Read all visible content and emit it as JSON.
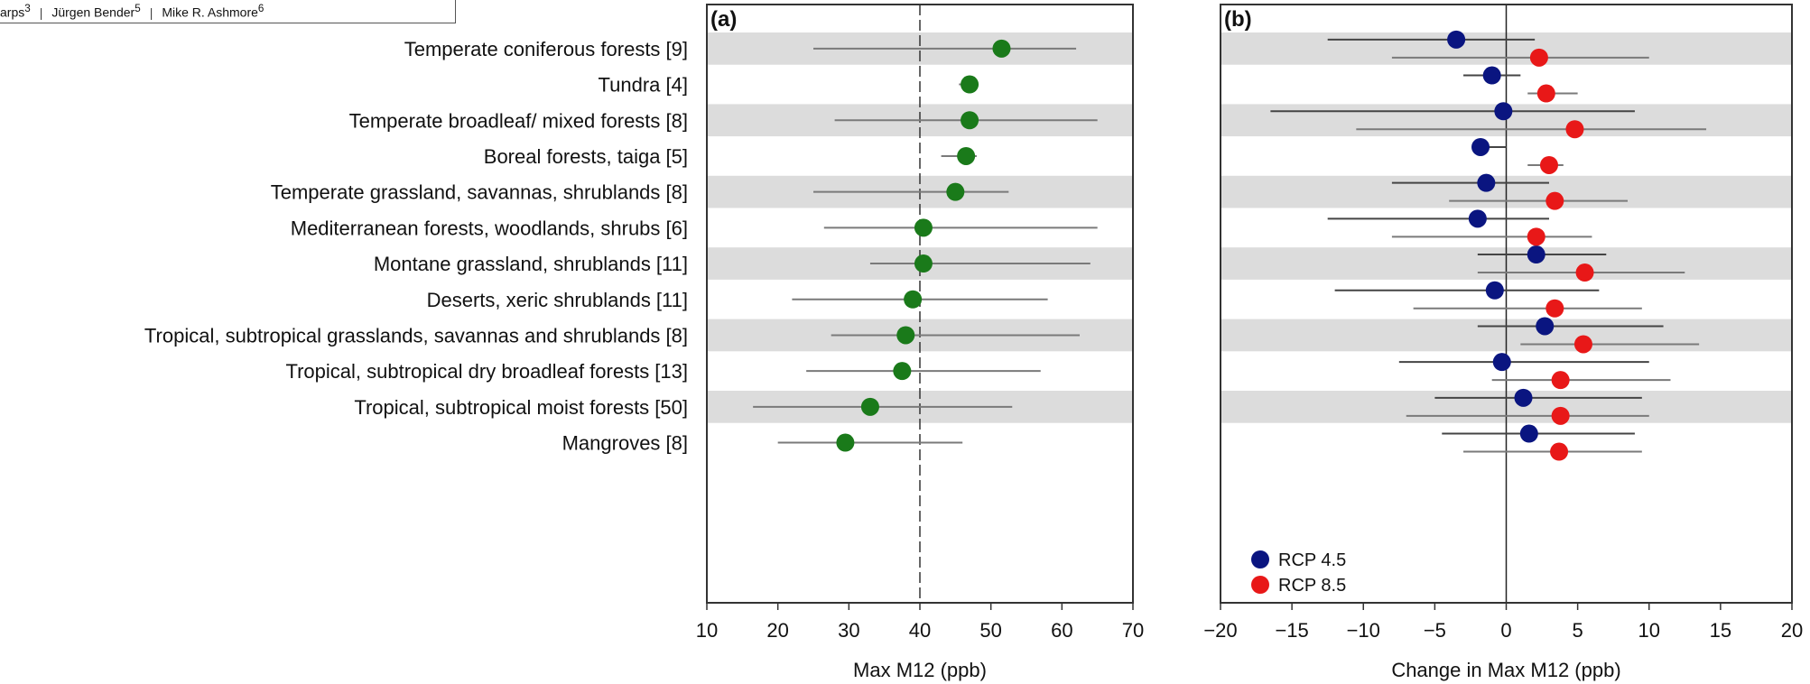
{
  "header": {
    "authors": [
      {
        "name": "arps",
        "sup": "3"
      },
      {
        "name": "Jürgen Bender",
        "sup": "5"
      },
      {
        "name": "Mike R. Ashmore",
        "sup": "6"
      }
    ],
    "separator": "|"
  },
  "categories": [
    "Temperate coniferous forests [9]",
    "Tundra [4]",
    "Temperate broadleaf/ mixed forests [8]",
    "Boreal forests, taiga [5]",
    "Temperate grassland, savannas, shrublands [8]",
    "Mediterranean forests, woodlands, shrubs [6]",
    "Montane grassland, shrublands [11]",
    "Deserts, xeric shrublands [11]",
    "Tropical, subtropical grasslands, savannas and shrublands [8]",
    "Tropical, subtropical dry broadleaf forests [13]",
    "Tropical, subtropical moist forests [50]",
    "Mangroves [8]"
  ],
  "chart_data": [
    {
      "type": "scatter",
      "panel_label": "(a)",
      "xlabel": "Max  M12 (ppb)",
      "xlim": [
        10,
        70
      ],
      "xticks": [
        10,
        20,
        30,
        40,
        50,
        60,
        70
      ],
      "reference_line": 40,
      "colors": {
        "point": "#1a7a1a",
        "band": "#dcdcdc"
      },
      "series": [
        {
          "color": "#1a7a1a",
          "values": [
            51.5,
            47,
            47,
            46.5,
            45,
            40.5,
            40.5,
            39,
            38,
            37.5,
            33,
            29.5
          ],
          "lower": [
            25,
            45.5,
            28,
            43,
            25,
            26.5,
            33,
            22,
            27.5,
            24,
            16.5,
            20
          ],
          "upper": [
            62,
            48,
            65,
            48,
            52.5,
            65,
            64,
            58,
            62.5,
            57,
            53,
            46
          ]
        }
      ]
    },
    {
      "type": "scatter",
      "panel_label": "(b)",
      "xlabel": "Change in Max M12 (ppb)",
      "xlim": [
        -20,
        20
      ],
      "xticks": [
        -20,
        -15,
        -10,
        -5,
        0,
        5,
        10,
        15,
        20
      ],
      "reference_line": 0,
      "legend": "bottom-left",
      "series": [
        {
          "name": "RCP 4.5",
          "color": "#0a1580",
          "values": [
            -3.5,
            -1,
            -0.2,
            -1.8,
            -1.4,
            -2,
            2.1,
            -0.8,
            2.7,
            -0.3,
            1.2,
            1.6
          ],
          "lower": [
            -12.5,
            -3,
            -16.5,
            -2,
            -8,
            -12.5,
            -2,
            -12,
            -2,
            -7.5,
            -5,
            -4.5
          ],
          "upper": [
            2,
            1,
            9,
            0,
            3,
            3,
            7,
            6.5,
            11,
            10,
            9.5,
            9
          ]
        },
        {
          "name": "RCP 8.5",
          "color": "#e81818",
          "values": [
            2.3,
            2.8,
            4.8,
            3.0,
            3.4,
            2.1,
            5.5,
            3.4,
            5.4,
            3.8,
            3.8,
            3.7
          ],
          "lower": [
            -8,
            1.5,
            -10.5,
            1.5,
            -4,
            -8,
            -2,
            -6.5,
            1,
            -1,
            -7,
            -3
          ],
          "upper": [
            10,
            5,
            14,
            4,
            8.5,
            6,
            12.5,
            9.5,
            13.5,
            11.5,
            10,
            9.5
          ]
        }
      ]
    }
  ]
}
